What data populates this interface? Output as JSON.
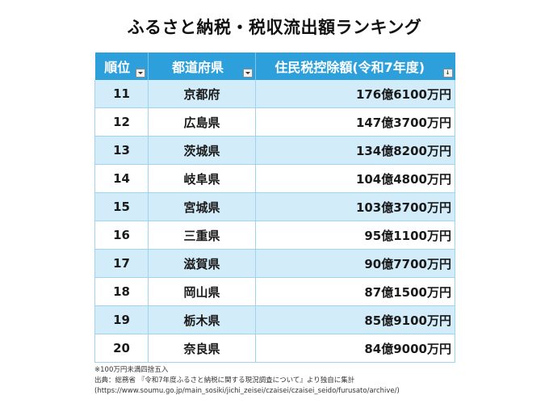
{
  "title": "ふるさと納税・税収流出額ランキング",
  "table": {
    "headers": [
      "順位",
      "都道府県",
      "住民税控除額(令和7年度)"
    ],
    "header_bg": "#2da0db",
    "stripe_bg": "#d3ecf9",
    "rows": [
      {
        "rank": "11",
        "prefecture": "京都府",
        "amount": "176億6100万円"
      },
      {
        "rank": "12",
        "prefecture": "広島県",
        "amount": "147億3700万円"
      },
      {
        "rank": "13",
        "prefecture": "茨城県",
        "amount": "134億8200万円"
      },
      {
        "rank": "14",
        "prefecture": "岐阜県",
        "amount": "104億4800万円"
      },
      {
        "rank": "15",
        "prefecture": "宮城県",
        "amount": "103億3700万円"
      },
      {
        "rank": "16",
        "prefecture": "三重県",
        "amount": "95億1100万円"
      },
      {
        "rank": "17",
        "prefecture": "滋賀県",
        "amount": "90億7700万円"
      },
      {
        "rank": "18",
        "prefecture": "岡山県",
        "amount": "87億1500万円"
      },
      {
        "rank": "19",
        "prefecture": "栃木県",
        "amount": "85億9100万円"
      },
      {
        "rank": "20",
        "prefecture": "奈良県",
        "amount": "84億9000万円"
      }
    ]
  },
  "notes": [
    "※100万円未満四捨五入",
    "出典：総務省 『令和7年度ふるさと納税に関する現況調査について』より独自に集計",
    "(https://www.soumu.go.jp/main_sosiki/jichi_zeisei/czaisei/czaisei_seido/furusato/archive/)"
  ]
}
